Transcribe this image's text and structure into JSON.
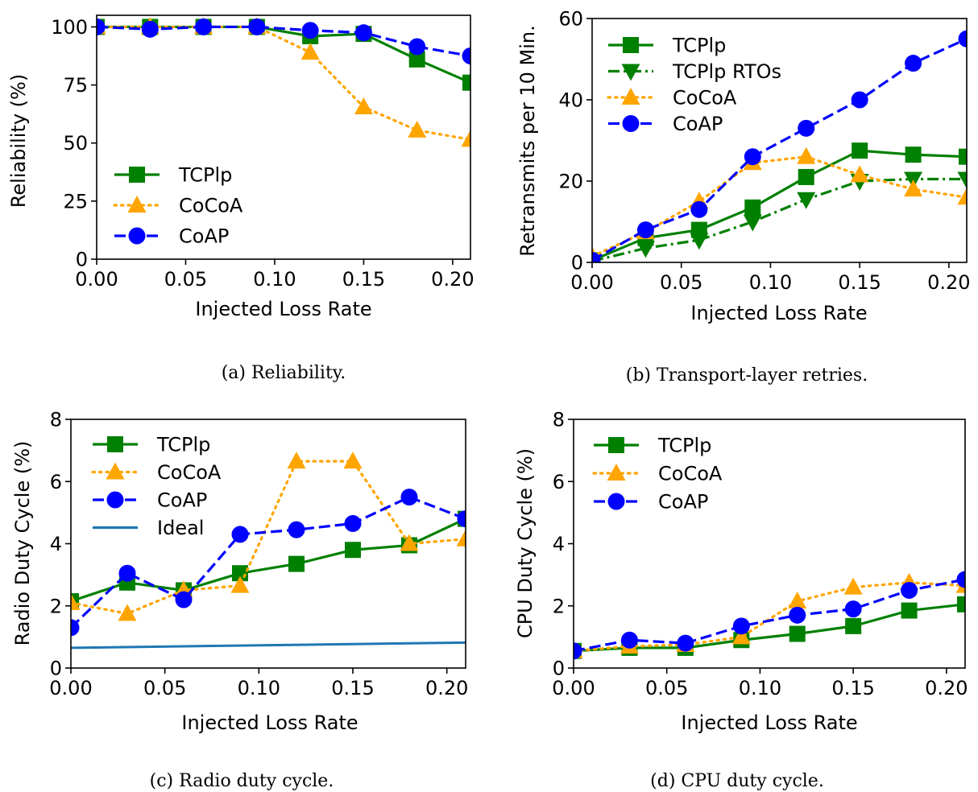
{
  "chart_data": [
    {
      "type": "line",
      "caption": "(a) Reliability.",
      "xlabel": "Injected Loss Rate",
      "ylabel": "Reliability (%)",
      "xlim": [
        0,
        0.21
      ],
      "ylim": [
        0,
        105
      ],
      "xticks": [
        0.0,
        0.05,
        0.1,
        0.15,
        0.2
      ],
      "xtick_labels": [
        "0.00",
        "0.05",
        "0.10",
        "0.15",
        "0.20"
      ],
      "yticks": [
        0,
        25,
        50,
        75,
        100
      ],
      "ytick_labels": [
        "0",
        "25",
        "50",
        "75",
        "100"
      ],
      "grid": false,
      "legend_position": "lower-left",
      "x": [
        0.0,
        0.03,
        0.06,
        0.09,
        0.12,
        0.15,
        0.18,
        0.21
      ],
      "series": [
        {
          "name": "TCPlp",
          "color": "#008000",
          "dash": "solid",
          "marker": "square",
          "values": [
            100,
            100,
            100,
            100,
            96,
            97,
            86,
            76
          ]
        },
        {
          "name": "CoCoA",
          "color": "#FFA500",
          "dash": "dotted",
          "marker": "triangle-up",
          "values": [
            100,
            100,
            100,
            100,
            89,
            65.5,
            55.5,
            51.5
          ]
        },
        {
          "name": "CoAP",
          "color": "#0000FF",
          "dash": "dashed",
          "marker": "circle",
          "values": [
            100,
            99,
            100,
            100,
            98.5,
            97.5,
            91.5,
            87.5
          ]
        }
      ]
    },
    {
      "type": "line",
      "caption": "(b) Transport-layer retries.",
      "xlabel": "Injected Loss Rate",
      "ylabel": "Retransmits per 10 Min.",
      "xlim": [
        0,
        0.21
      ],
      "ylim": [
        0,
        60
      ],
      "xticks": [
        0.0,
        0.05,
        0.1,
        0.15,
        0.2
      ],
      "xtick_labels": [
        "0.00",
        "0.05",
        "0.10",
        "0.15",
        "0.20"
      ],
      "yticks": [
        0,
        20,
        40,
        60
      ],
      "ytick_labels": [
        "0",
        "20",
        "40",
        "60"
      ],
      "grid": false,
      "legend_position": "upper-left",
      "x": [
        0.0,
        0.03,
        0.06,
        0.09,
        0.12,
        0.15,
        0.18,
        0.21
      ],
      "series": [
        {
          "name": "TCPlp",
          "color": "#008000",
          "dash": "solid",
          "marker": "square",
          "values": [
            0.5,
            6,
            8,
            13.5,
            21,
            27.5,
            26.5,
            26
          ]
        },
        {
          "name": "TCPlp RTOs",
          "color": "#008000",
          "dash": "dashdot",
          "marker": "triangle-down",
          "values": [
            0.3,
            3.5,
            5.5,
            10,
            15.5,
            20,
            20.5,
            20.5
          ]
        },
        {
          "name": "CoCoA",
          "color": "#FFA500",
          "dash": "dotted",
          "marker": "triangle-up",
          "values": [
            1.5,
            7.5,
            15,
            24.5,
            26,
            21.5,
            18,
            16
          ]
        },
        {
          "name": "CoAP",
          "color": "#0000FF",
          "dash": "dashed",
          "marker": "circle",
          "values": [
            0.5,
            8,
            13,
            26,
            33,
            40,
            49,
            55
          ]
        }
      ]
    },
    {
      "type": "line",
      "caption": "(c) Radio duty cycle.",
      "xlabel": "Injected Loss Rate",
      "ylabel": "Radio Duty Cycle (%)",
      "xlim": [
        0,
        0.21
      ],
      "ylim": [
        0,
        8
      ],
      "xticks": [
        0.0,
        0.05,
        0.1,
        0.15,
        0.2
      ],
      "xtick_labels": [
        "0.00",
        "0.05",
        "0.10",
        "0.15",
        "0.20"
      ],
      "yticks": [
        0,
        2,
        4,
        6,
        8
      ],
      "ytick_labels": [
        "0",
        "2",
        "4",
        "6",
        "8"
      ],
      "grid": false,
      "legend_position": "upper-left",
      "x": [
        0.0,
        0.03,
        0.06,
        0.09,
        0.12,
        0.15,
        0.18,
        0.21
      ],
      "series": [
        {
          "name": "TCPlp",
          "color": "#008000",
          "dash": "solid",
          "marker": "square",
          "values": [
            2.15,
            2.75,
            2.5,
            3.05,
            3.35,
            3.8,
            3.95,
            4.8
          ]
        },
        {
          "name": "CoCoA",
          "color": "#FFA500",
          "dash": "dotted",
          "marker": "triangle-up",
          "values": [
            2.1,
            1.75,
            2.5,
            2.65,
            6.65,
            6.65,
            4.0,
            4.15
          ]
        },
        {
          "name": "CoAP",
          "color": "#0000FF",
          "dash": "dashed",
          "marker": "circle",
          "values": [
            1.3,
            3.05,
            2.2,
            4.3,
            4.45,
            4.65,
            5.5,
            4.8
          ]
        },
        {
          "name": "Ideal",
          "color": "#1F77B4",
          "dash": "solid",
          "marker": "none",
          "x": [
            0.0,
            0.21
          ],
          "values": [
            0.65,
            0.82
          ]
        }
      ]
    },
    {
      "type": "line",
      "caption": "(d) CPU duty cycle.",
      "xlabel": "Injected Loss Rate",
      "ylabel": "CPU Duty Cycle (%)",
      "xlim": [
        0,
        0.21
      ],
      "ylim": [
        0,
        8
      ],
      "xticks": [
        0.0,
        0.05,
        0.1,
        0.15,
        0.2
      ],
      "xtick_labels": [
        "0.00",
        "0.05",
        "0.10",
        "0.15",
        "0.20"
      ],
      "yticks": [
        0,
        2,
        4,
        6,
        8
      ],
      "ytick_labels": [
        "0",
        "2",
        "4",
        "6",
        "8"
      ],
      "grid": false,
      "legend_position": "upper-left",
      "x": [
        0.0,
        0.03,
        0.06,
        0.09,
        0.12,
        0.15,
        0.18,
        0.21
      ],
      "series": [
        {
          "name": "TCPlp",
          "color": "#008000",
          "dash": "solid",
          "marker": "square",
          "values": [
            0.55,
            0.65,
            0.65,
            0.9,
            1.1,
            1.35,
            1.85,
            2.05
          ]
        },
        {
          "name": "CoCoA",
          "color": "#FFA500",
          "dash": "dotted",
          "marker": "triangle-up",
          "values": [
            0.55,
            0.7,
            0.75,
            1.0,
            2.15,
            2.6,
            2.75,
            2.65
          ]
        },
        {
          "name": "CoAP",
          "color": "#0000FF",
          "dash": "dashed",
          "marker": "circle",
          "values": [
            0.55,
            0.9,
            0.8,
            1.35,
            1.7,
            1.9,
            2.5,
            2.85
          ]
        }
      ]
    }
  ]
}
